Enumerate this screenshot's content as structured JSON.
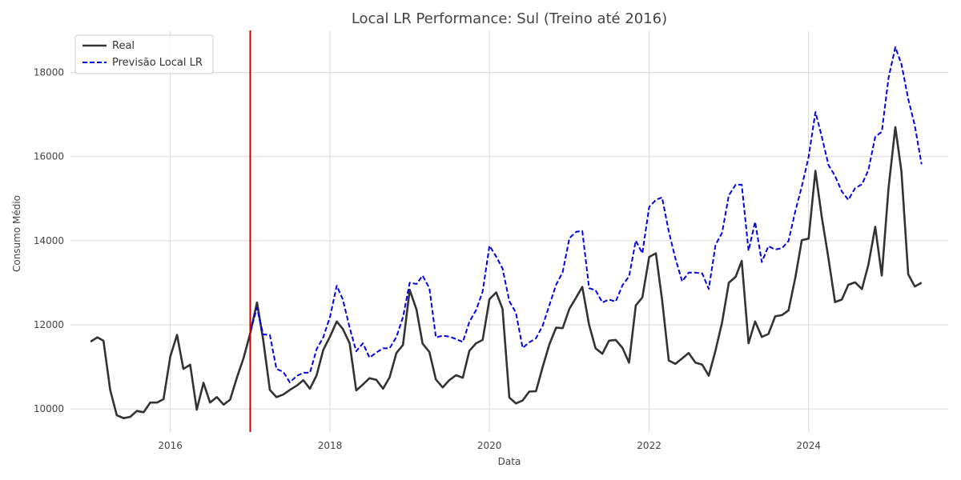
{
  "chart_data": {
    "type": "line",
    "title": "Local LR Performance: Sul (Treino até 2016)",
    "xlabel": "Data",
    "ylabel": "Consumo Médio",
    "x_range": [
      "2014-10-01",
      "2025-10-01"
    ],
    "ylim": [
      9450,
      19000
    ],
    "y_ticks": [
      10000,
      12000,
      14000,
      16000,
      18000
    ],
    "x_ticks": [
      {
        "label": "2016",
        "date": "2016-01-01"
      },
      {
        "label": "2018",
        "date": "2018-01-01"
      },
      {
        "label": "2020",
        "date": "2020-01-01"
      },
      {
        "label": "2022",
        "date": "2022-01-01"
      },
      {
        "label": "2024",
        "date": "2024-01-01"
      }
    ],
    "grid": true,
    "legend_position": "top-left",
    "train_cutoff": {
      "date": "2017-01-01",
      "color": "#cc0000"
    },
    "series": [
      {
        "name": "Real",
        "color": "#333333",
        "style": "solid",
        "start": "2015-01",
        "values": [
          11600,
          11700,
          11620,
          10450,
          9850,
          9780,
          9810,
          9950,
          9920,
          10150,
          10150,
          10230,
          11250,
          11760,
          10950,
          11050,
          9980,
          10620,
          10150,
          10280,
          10100,
          10220,
          10750,
          11200,
          11800,
          12530,
          11650,
          10450,
          10280,
          10340,
          10450,
          10550,
          10680,
          10480,
          10800,
          11400,
          11720,
          12080,
          11900,
          11560,
          10440,
          10580,
          10730,
          10690,
          10480,
          10750,
          11330,
          11520,
          12830,
          12360,
          11550,
          11350,
          10700,
          10510,
          10680,
          10800,
          10740,
          11380,
          11560,
          11640,
          12610,
          12770,
          12380,
          10270,
          10130,
          10200,
          10410,
          10420,
          11000,
          11530,
          11930,
          11920,
          12380,
          12650,
          12900,
          12000,
          11440,
          11310,
          11620,
          11640,
          11450,
          11100,
          12460,
          12650,
          13610,
          13700,
          12600,
          11150,
          11070,
          11200,
          11330,
          11100,
          11050,
          10790,
          11390,
          12060,
          13000,
          13140,
          13520,
          11560,
          12080,
          11710,
          11780,
          12200,
          12230,
          12340,
          13120,
          14010,
          14050,
          15660,
          14570,
          13580,
          12540,
          12600,
          12950,
          13010,
          12850,
          13430,
          14330,
          13170,
          15250,
          16700,
          15650,
          13200,
          12910,
          13000
        ]
      },
      {
        "name": "Previsão Local LR",
        "color": "#0000ee",
        "style": "dashed",
        "start": "2017-01",
        "values": [
          11850,
          12400,
          11770,
          11760,
          10950,
          10880,
          10630,
          10780,
          10860,
          10860,
          11420,
          11700,
          12190,
          12930,
          12600,
          11930,
          11370,
          11560,
          11220,
          11340,
          11440,
          11440,
          11710,
          12180,
          13000,
          12970,
          13170,
          12870,
          11700,
          11740,
          11720,
          11660,
          11590,
          12070,
          12350,
          12790,
          13880,
          13620,
          13340,
          12560,
          12290,
          11450,
          11580,
          11680,
          11980,
          12460,
          12950,
          13250,
          14060,
          14210,
          14230,
          12870,
          12820,
          12530,
          12600,
          12550,
          12940,
          13150,
          14000,
          13700,
          14800,
          14970,
          15030,
          14220,
          13580,
          13030,
          13240,
          13240,
          13220,
          12850,
          13900,
          14190,
          15080,
          15330,
          15330,
          13760,
          14450,
          13490,
          13870,
          13790,
          13820,
          13990,
          14700,
          15290,
          15990,
          17060,
          16480,
          15800,
          15540,
          15170,
          14970,
          15250,
          15340,
          15680,
          16470,
          16590,
          17870,
          18600,
          18200,
          17370,
          16740,
          15820
        ]
      }
    ]
  }
}
